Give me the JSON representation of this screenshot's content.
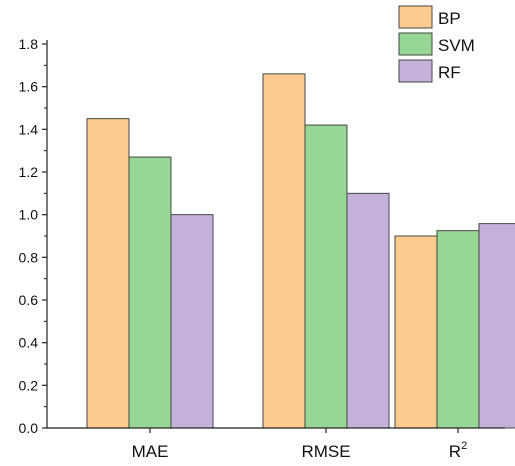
{
  "chart_data": {
    "type": "bar",
    "categories": [
      "MAE",
      "RMSE",
      "R"
    ],
    "category_superscripts": [
      "",
      "",
      "2"
    ],
    "series": [
      {
        "name": "BP",
        "values": [
          1.45,
          1.66,
          0.9
        ],
        "color": "#FDCB8E"
      },
      {
        "name": "SVM",
        "values": [
          1.27,
          1.42,
          0.925
        ],
        "color": "#97D694"
      },
      {
        "name": "RF",
        "values": [
          1.0,
          1.1,
          0.958
        ],
        "color": "#C4B2DB"
      }
    ],
    "title": "",
    "xlabel": "",
    "ylabel": "",
    "ylim": [
      0,
      1.8
    ],
    "yticks": [
      "0.0",
      "0.2",
      "0.4",
      "0.6",
      "0.8",
      "1.0",
      "1.2",
      "1.4",
      "1.6",
      "1.8"
    ],
    "grid": false,
    "legend_position": "top-right",
    "bar_stroke_color": "#444444",
    "axis_color": "#222222"
  }
}
